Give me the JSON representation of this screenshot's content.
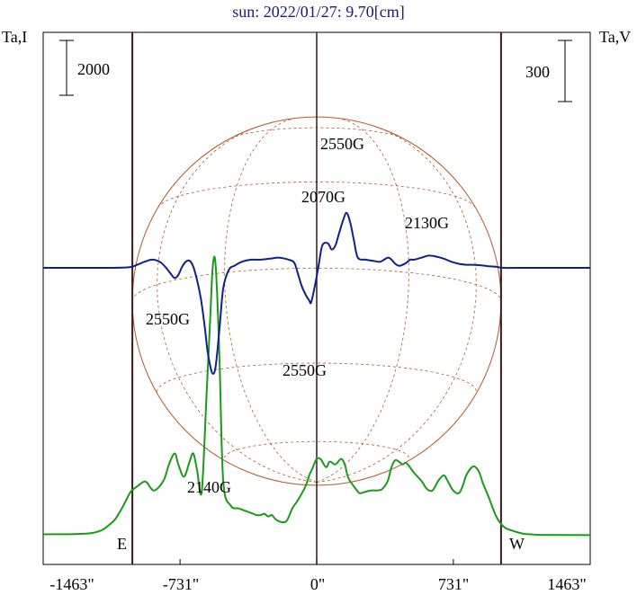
{
  "title": "sun: 2022/01/27: 9.70[cm]",
  "left_axis_label": "Ta,I",
  "right_axis_label": "Ta,V",
  "scale_bar_left_label": "2000",
  "scale_bar_right_label": "300",
  "limb_east_label": "E",
  "limb_west_label": "W",
  "colors": {
    "title": "#1a1a7a",
    "frame": "#000000",
    "limb_lines": "#3a1a1a",
    "stokes_I": "#1a9a1a",
    "stokes_V": "#10208a",
    "disk_grid": "#b05a2a"
  },
  "chart_data": {
    "type": "line",
    "title": "sun: 2022/01/27: 9.70[cm]",
    "xlabel": "",
    "ylabel_left": "Ta,I",
    "ylabel_right": "Ta,V",
    "xlim": [
      -1463,
      1463
    ],
    "x_ticks": [
      -1463,
      -731,
      0,
      731,
      1463
    ],
    "x_tick_labels": [
      "-1463\"",
      "-731\"",
      "0\"",
      "731\"",
      "1463\""
    ],
    "limb_lines_x": [
      -986,
      986
    ],
    "scale_bar_I": 2000,
    "scale_bar_V": 300,
    "series": [
      {
        "name": "Ta,I",
        "axis": "left",
        "x": [
          -1463,
          -1200,
          -1100,
          -1050,
          -1000,
          -980,
          -960,
          -930,
          -910,
          -870,
          -820,
          -790,
          -760,
          -740,
          -710,
          -680,
          -660,
          -640,
          -615,
          -590,
          -570,
          -555,
          -540,
          -520,
          -500,
          -460,
          -420,
          -400,
          -360,
          -340,
          -320,
          -300,
          -280,
          -260,
          -240,
          -220,
          -190,
          -160,
          -130,
          -100,
          -60,
          -40,
          -20,
          0,
          20,
          50,
          70,
          100,
          130,
          150,
          170,
          210,
          230,
          260,
          290,
          320,
          350,
          380,
          400,
          420,
          440,
          460,
          480,
          520,
          560,
          590,
          620,
          650,
          680,
          700,
          730,
          760,
          780,
          800,
          830,
          850,
          870,
          890,
          920,
          960,
          990,
          1020,
          1100,
          1150,
          1200,
          1463
        ],
        "y": [
          50,
          100,
          450,
          900,
          1550,
          1700,
          1800,
          1950,
          1950,
          1650,
          2000,
          2600,
          3000,
          2600,
          2150,
          2700,
          3000,
          2400,
          1600,
          5000,
          7900,
          9900,
          9800,
          6500,
          2000,
          1100,
          1000,
          950,
          850,
          800,
          750,
          750,
          800,
          700,
          750,
          600,
          500,
          550,
          1000,
          1300,
          1800,
          2200,
          2500,
          2800,
          2800,
          2500,
          2700,
          2600,
          2800,
          2600,
          2100,
          1700,
          1550,
          1600,
          1650,
          1650,
          1700,
          2000,
          2500,
          2750,
          2700,
          2600,
          2650,
          2300,
          2000,
          1700,
          1650,
          2000,
          2200,
          2000,
          1650,
          1550,
          1800,
          2200,
          2500,
          2500,
          2300,
          1900,
          1400,
          700,
          400,
          250,
          80,
          50,
          30,
          20
        ]
      },
      {
        "name": "Ta,V",
        "axis": "right",
        "x": [
          -1463,
          -1350,
          -1200,
          -1100,
          -1000,
          -960,
          -920,
          -880,
          -840,
          -810,
          -780,
          -760,
          -740,
          -720,
          -700,
          -680,
          -660,
          -640,
          -620,
          -600,
          -585,
          -570,
          -555,
          -540,
          -520,
          -500,
          -470,
          -440,
          -400,
          -350,
          -300,
          -250,
          -200,
          -150,
          -120,
          -100,
          -80,
          -60,
          -40,
          -30,
          -10,
          10,
          30,
          60,
          80,
          100,
          120,
          140,
          160,
          180,
          200,
          220,
          260,
          300,
          340,
          380,
          400,
          420,
          440,
          460,
          480,
          500,
          520,
          560,
          600,
          640,
          680,
          720,
          760,
          800,
          840,
          880,
          920,
          960,
          1000,
          1100,
          1200,
          1463
        ],
        "y": [
          0,
          0,
          0,
          0,
          3,
          15,
          30,
          40,
          30,
          5,
          -30,
          -50,
          -35,
          5,
          30,
          35,
          5,
          -60,
          -150,
          -280,
          -400,
          -480,
          -520,
          -480,
          -300,
          -100,
          -10,
          10,
          30,
          40,
          40,
          45,
          50,
          40,
          25,
          -30,
          -90,
          -130,
          -160,
          -170,
          -90,
          10,
          110,
          120,
          90,
          110,
          170,
          230,
          270,
          220,
          130,
          50,
          40,
          35,
          30,
          50,
          40,
          20,
          10,
          15,
          25,
          40,
          40,
          50,
          60,
          55,
          45,
          30,
          20,
          15,
          15,
          12,
          8,
          5,
          0,
          0,
          0,
          0
        ]
      }
    ],
    "annotations": [
      "2550G",
      "2070G",
      "2130G",
      "2550G",
      "2550G",
      "2140G"
    ]
  }
}
